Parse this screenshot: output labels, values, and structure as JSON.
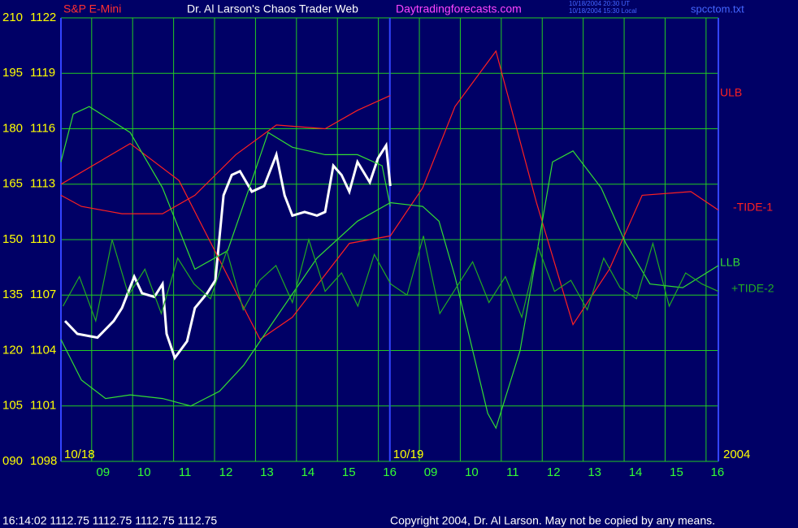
{
  "chart_data": {
    "type": "line",
    "title": "Dr. Al Larson's Chaos Trader Web",
    "subtitle": "S&P E-Mini",
    "website": "Daytradingforecasts.com",
    "timestamps": [
      "10/18/2004 20:30 UT",
      "10/18/2004 15:30 Local"
    ],
    "file_name": "spcctom.txt",
    "status_line": "16:14:02  1112.75 1112.75 1112.75 1112.75",
    "copyright": "Copyright 2004, Dr. Al Larson. May not be copied by any means.",
    "year_label": "2004",
    "grid": true,
    "xlim": [
      8.25,
      24.3
    ],
    "xticks": [
      {
        "value": 9,
        "label": "09"
      },
      10,
      11,
      12,
      13,
      14,
      15,
      16,
      {
        "value": 17,
        "label": "09"
      },
      {
        "value": 18,
        "label": "10"
      },
      {
        "value": 19,
        "label": "11"
      },
      {
        "value": 20,
        "label": "12"
      },
      {
        "value": 21,
        "label": "13"
      },
      {
        "value": 22,
        "label": "14"
      },
      {
        "value": 23,
        "label": "15"
      },
      {
        "value": 24,
        "label": "16"
      }
    ],
    "date_markers": [
      {
        "value": 8.25,
        "label": "10/18"
      },
      {
        "value": 16.28,
        "label": "10/19"
      }
    ],
    "ylim": [
      90,
      210
    ],
    "yticks": [
      {
        "value": 90,
        "label": "090"
      },
      105,
      120,
      135,
      150,
      165,
      180,
      195,
      210
    ],
    "y2lim": [
      1098,
      1122
    ],
    "y2ticks": [
      1098,
      1101,
      1104,
      1107,
      1110,
      1113,
      1116,
      1119,
      1122
    ],
    "series": [
      {
        "color": "#ffffff",
        "axis": "y2",
        "x": [
          8.35,
          8.65,
          9.14,
          9.54,
          9.74,
          10.04,
          10.23,
          10.53,
          10.73,
          10.83,
          11.03,
          11.33,
          11.52,
          11.82,
          12.02,
          12.22,
          12.42,
          12.62,
          12.91,
          13.21,
          13.51,
          13.71,
          13.9,
          14.2,
          14.5,
          14.7,
          14.9,
          15.1,
          15.29,
          15.49,
          15.79,
          15.99,
          16.19,
          16.29
        ],
        "values": [
          1105.6,
          1104.9,
          1104.7,
          1105.6,
          1106.3,
          1108.0,
          1107.1,
          1106.9,
          1107.6,
          1104.9,
          1103.6,
          1104.5,
          1106.3,
          1107.1,
          1107.8,
          1112.4,
          1113.5,
          1113.7,
          1112.6,
          1112.9,
          1114.6,
          1112.4,
          1111.3,
          1111.5,
          1111.3,
          1111.5,
          1114.0,
          1113.5,
          1112.6,
          1114.2,
          1113.1,
          1114.4,
          1115.1,
          1112.9
        ]
      },
      {
        "name": "ULB",
        "color": "#ff2020",
        "x": [
          8.25,
          8.75,
          9.74,
          10.73,
          11.52,
          12.52,
          13.51,
          14.7,
          15.49,
          16.29
        ],
        "values": [
          162,
          159,
          157,
          157,
          162,
          173,
          181,
          180,
          185,
          189
        ]
      },
      {
        "name": "-TIDE-1",
        "color": "#ff2020",
        "x": [
          8.25,
          9.94,
          11.13,
          13.11,
          13.9,
          15.29,
          16.29,
          17.08,
          17.87,
          18.87,
          19.86,
          20.75,
          21.64,
          22.44,
          23.63,
          24.3
        ],
        "values": [
          165,
          176,
          166,
          123,
          129,
          149,
          151,
          164,
          186,
          201,
          160,
          127,
          142,
          162,
          163,
          158
        ]
      },
      {
        "name": "LLB",
        "color": "#33dd33",
        "x": [
          8.25,
          8.75,
          9.34,
          9.94,
          10.73,
          11.42,
          12.12,
          12.71,
          13.51,
          14.5,
          15.49,
          16.29,
          17.08,
          17.48,
          17.87,
          18.67,
          18.87,
          19.46,
          20.25,
          20.75,
          21.44,
          22.04,
          22.63,
          23.43,
          24.3
        ],
        "values": [
          123,
          112,
          107,
          108,
          107,
          105,
          109,
          116,
          129,
          145,
          155,
          160,
          159,
          155,
          140,
          103,
          99,
          120,
          171,
          174,
          164,
          149,
          138,
          137,
          143
        ]
      },
      {
        "color": "#33dd33",
        "x": [
          8.25,
          8.55,
          8.94,
          9.94,
          10.73,
          11.52,
          12.32,
          12.91,
          13.31,
          13.9,
          14.7,
          15.49,
          16.09,
          16.29
        ],
        "values": [
          171,
          184,
          186,
          179,
          164,
          142,
          147,
          166,
          179,
          175,
          173,
          173,
          170,
          159
        ]
      },
      {
        "name": "+TIDE-2",
        "color": "#22aa22",
        "x": [
          8.3,
          8.7,
          9.1,
          9.5,
          9.9,
          10.3,
          10.7,
          11.1,
          11.5,
          11.9,
          12.3,
          12.7,
          13.1,
          13.5,
          13.9,
          14.3,
          14.7,
          15.1,
          15.5,
          15.9,
          16.3,
          16.7,
          17.1,
          17.5,
          17.9,
          18.3,
          18.7,
          19.1,
          19.5,
          19.9,
          20.3,
          20.7,
          21.1,
          21.5,
          21.9,
          22.3,
          22.7,
          23.1,
          23.5,
          23.9,
          24.3
        ],
        "values": [
          132,
          140,
          128,
          150,
          135,
          142,
          130,
          145,
          138,
          134,
          147,
          131,
          139,
          143,
          133,
          150,
          136,
          141,
          132,
          146,
          138,
          135,
          151,
          130,
          137,
          144,
          133,
          140,
          129,
          148,
          136,
          139,
          131,
          145,
          137,
          134,
          149,
          132,
          141,
          138,
          136
        ]
      }
    ]
  }
}
